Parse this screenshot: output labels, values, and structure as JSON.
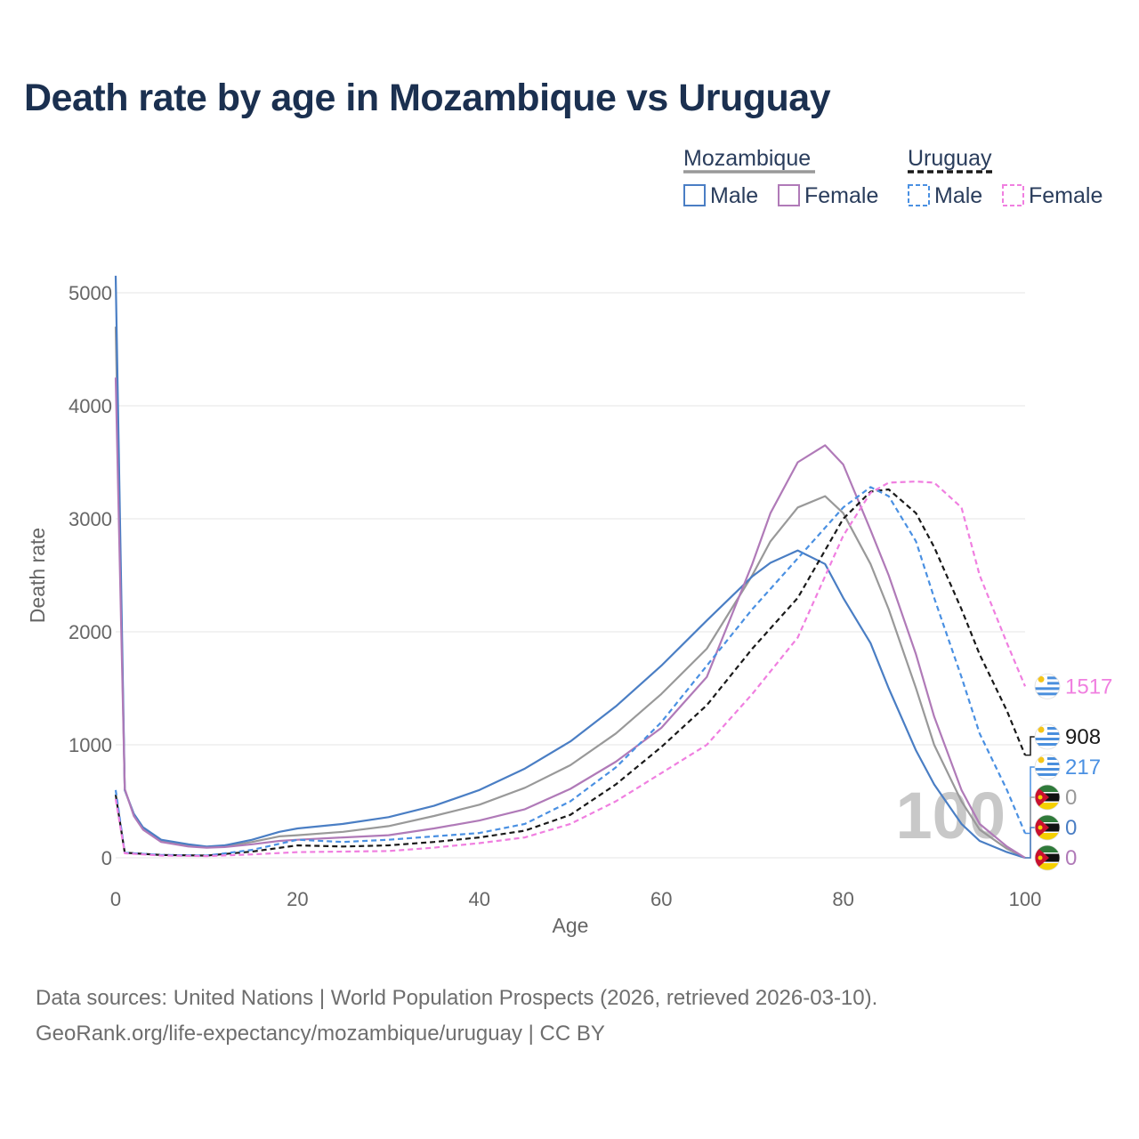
{
  "title": "Death rate by age in Mozambique vs Uruguay",
  "colors": {
    "moz_male": "#4a7ec4",
    "moz_female": "#b07ab8",
    "moz_total": "#999999",
    "uru_male": "#4a90e2",
    "uru_female": "#f07fe0",
    "uru_total": "#1a1a1a",
    "grid": "#e6e6e6",
    "title": "#1b3050"
  },
  "legend": {
    "groups": [
      {
        "name": "Mozambique",
        "line_color": "#999999",
        "dashed": false,
        "items": [
          {
            "label": "Male",
            "color": "#4a7ec4"
          },
          {
            "label": "Female",
            "color": "#b07ab8"
          }
        ]
      },
      {
        "name": "Uruguay",
        "line_color": "#1a1a1a",
        "dashed": true,
        "items": [
          {
            "label": "Male",
            "color": "#4a90e2"
          },
          {
            "label": "Female",
            "color": "#f07fe0"
          }
        ]
      }
    ]
  },
  "chart_data": {
    "type": "line",
    "title": "Death rate by age in Mozambique vs Uruguay",
    "xlabel": "Age",
    "ylabel": "Death rate",
    "xlim": [
      0,
      100
    ],
    "ylim": [
      0,
      5000
    ],
    "xticks": [
      0,
      20,
      40,
      60,
      80,
      100
    ],
    "yticks": [
      0,
      1000,
      2000,
      3000,
      4000,
      5000
    ],
    "grid": true,
    "year_label": "100",
    "series": [
      {
        "name": "Mozambique Total",
        "color": "#999999",
        "dashed": false,
        "x": [
          0,
          1,
          2,
          3,
          5,
          8,
          10,
          12,
          15,
          18,
          20,
          25,
          30,
          35,
          40,
          45,
          50,
          55,
          60,
          65,
          70,
          72,
          75,
          78,
          80,
          83,
          85,
          88,
          90,
          93,
          95,
          98,
          100
        ],
        "values": [
          4700,
          600,
          380,
          260,
          150,
          110,
          95,
          100,
          140,
          190,
          200,
          230,
          280,
          370,
          470,
          620,
          820,
          1100,
          1450,
          1850,
          2500,
          2800,
          3100,
          3200,
          3050,
          2600,
          2200,
          1500,
          1000,
          500,
          250,
          80,
          0
        ]
      },
      {
        "name": "Mozambique Male",
        "color": "#4a7ec4",
        "dashed": false,
        "x": [
          0,
          1,
          2,
          3,
          5,
          8,
          10,
          12,
          15,
          18,
          20,
          25,
          30,
          35,
          40,
          45,
          50,
          55,
          60,
          65,
          70,
          72,
          75,
          78,
          80,
          83,
          85,
          88,
          90,
          93,
          95,
          98,
          100
        ],
        "values": [
          5150,
          600,
          390,
          270,
          160,
          120,
          100,
          110,
          160,
          230,
          260,
          300,
          360,
          460,
          600,
          790,
          1030,
          1340,
          1700,
          2100,
          2490,
          2610,
          2720,
          2600,
          2300,
          1900,
          1500,
          950,
          650,
          300,
          150,
          50,
          0
        ]
      },
      {
        "name": "Mozambique Female",
        "color": "#b07ab8",
        "dashed": false,
        "x": [
          0,
          1,
          2,
          3,
          5,
          8,
          10,
          12,
          15,
          18,
          20,
          25,
          30,
          35,
          40,
          45,
          50,
          55,
          60,
          65,
          70,
          72,
          75,
          78,
          80,
          83,
          85,
          88,
          90,
          93,
          95,
          98,
          100
        ],
        "values": [
          4250,
          610,
          370,
          250,
          140,
          100,
          90,
          95,
          120,
          150,
          160,
          180,
          200,
          260,
          330,
          430,
          610,
          850,
          1150,
          1600,
          2600,
          3050,
          3500,
          3650,
          3480,
          2900,
          2500,
          1800,
          1250,
          600,
          300,
          100,
          0
        ]
      },
      {
        "name": "Uruguay Total",
        "color": "#1a1a1a",
        "dashed": true,
        "x": [
          0,
          1,
          5,
          10,
          15,
          20,
          25,
          30,
          35,
          40,
          45,
          50,
          55,
          60,
          65,
          70,
          75,
          80,
          83,
          85,
          88,
          90,
          93,
          95,
          98,
          100
        ],
        "values": [
          560,
          45,
          25,
          20,
          55,
          110,
          100,
          110,
          140,
          180,
          240,
          380,
          650,
          980,
          1350,
          1850,
          2300,
          3000,
          3240,
          3260,
          3050,
          2750,
          2200,
          1800,
          1300,
          908
        ]
      },
      {
        "name": "Uruguay Male",
        "color": "#4a90e2",
        "dashed": true,
        "x": [
          0,
          1,
          5,
          10,
          15,
          20,
          25,
          30,
          35,
          40,
          45,
          50,
          55,
          60,
          65,
          70,
          75,
          80,
          83,
          85,
          88,
          90,
          93,
          95,
          98,
          100
        ],
        "values": [
          600,
          45,
          25,
          20,
          70,
          160,
          140,
          160,
          190,
          220,
          300,
          500,
          800,
          1200,
          1700,
          2200,
          2650,
          3100,
          3280,
          3200,
          2800,
          2300,
          1600,
          1100,
          600,
          217
        ]
      },
      {
        "name": "Uruguay Female",
        "color": "#f07fe0",
        "dashed": true,
        "x": [
          0,
          1,
          5,
          10,
          15,
          20,
          25,
          30,
          35,
          40,
          45,
          50,
          55,
          60,
          65,
          70,
          75,
          80,
          83,
          85,
          88,
          90,
          93,
          95,
          98,
          100
        ],
        "values": [
          520,
          40,
          20,
          15,
          30,
          50,
          55,
          60,
          90,
          130,
          180,
          300,
          500,
          750,
          1000,
          1450,
          1950,
          2850,
          3230,
          3320,
          3330,
          3320,
          3100,
          2500,
          1900,
          1517
        ]
      }
    ],
    "end_labels": [
      {
        "series": "Uruguay Female",
        "text": "1517",
        "flag": "uruguay",
        "color": "#f07fe0"
      },
      {
        "series": "Uruguay Total",
        "text": "908",
        "flag": "uruguay",
        "color": "#1a1a1a"
      },
      {
        "series": "Uruguay Male",
        "text": "217",
        "flag": "uruguay",
        "color": "#4a90e2"
      },
      {
        "series": "Mozambique Total",
        "text": "0",
        "flag": "mozambique",
        "color": "#999999"
      },
      {
        "series": "Mozambique Male",
        "text": "0",
        "flag": "mozambique",
        "color": "#4a7ec4"
      },
      {
        "series": "Mozambique Female",
        "text": "0",
        "flag": "mozambique",
        "color": "#b07ab8"
      }
    ]
  },
  "source": {
    "line1": "Data sources: United Nations | World Population Prospects (2026, retrieved 2026-03-10).",
    "line2": "GeoRank.org/life-expectancy/mozambique/uruguay | CC BY"
  }
}
